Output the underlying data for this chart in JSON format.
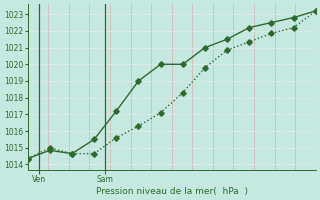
{
  "line1_x": [
    0,
    1,
    2,
    3,
    4,
    5,
    6,
    7,
    8,
    9,
    10,
    11,
    12,
    13
  ],
  "line1_y": [
    1014.35,
    1014.85,
    1014.65,
    1015.5,
    1017.2,
    1019.0,
    1020.0,
    1020.0,
    1021.0,
    1021.5,
    1022.2,
    1022.5,
    1022.8,
    1023.2
  ],
  "line2_x": [
    0,
    1,
    2,
    3,
    4,
    5,
    6,
    7,
    8,
    9,
    10,
    11,
    12,
    13
  ],
  "line2_y": [
    1014.35,
    1015.0,
    1014.65,
    1014.65,
    1015.6,
    1016.3,
    1017.1,
    1018.3,
    1019.8,
    1020.85,
    1021.35,
    1021.85,
    1022.2,
    1023.2
  ],
  "line_color": "#2d6a2d",
  "bg_color": "#c5e8e0",
  "grid_color_v": "#d8b8b8",
  "grid_color_h": "#dde8e4",
  "ylim": [
    1013.7,
    1023.6
  ],
  "yticks": [
    1014,
    1015,
    1016,
    1017,
    1018,
    1019,
    1020,
    1021,
    1022,
    1023
  ],
  "xtick_ven": 0.5,
  "xtick_sam": 3.5,
  "xlabel": "Pression niveau de la mer(  hPa  )",
  "marker": "D",
  "markersize": 2.8,
  "linewidth": 1.0,
  "vline_x_ven": 0.5,
  "vline_x_sam": 3.5,
  "n_vgrid": 14,
  "xlim_min": 0,
  "xlim_max": 13
}
